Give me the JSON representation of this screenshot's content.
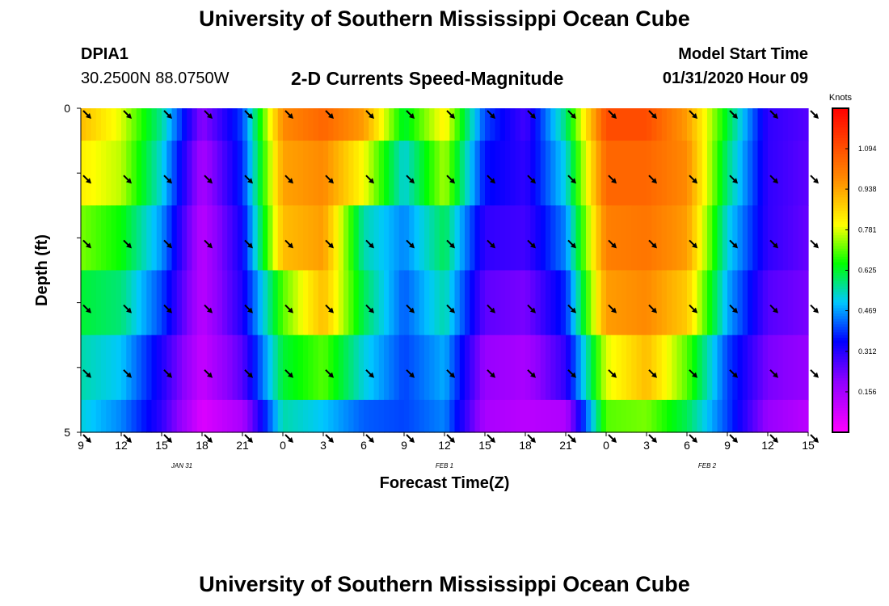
{
  "header": {
    "title": "University of Southern Mississippi Ocean Cube",
    "station_id": "DPIA1",
    "station_coords": "30.2500N 88.0750W",
    "plot_title": "2-D Currents Speed-Magnitude",
    "model_start_label": "Model Start Time",
    "model_start_value": "01/31/2020 Hour 09"
  },
  "footer": {
    "title": "University of Southern Mississippi Ocean Cube"
  },
  "chart_data": {
    "type": "heatmap",
    "title": "2-D Currents Speed-Magnitude",
    "xlabel": "Forecast Time(Z)",
    "ylabel": "Depth (ft)",
    "x_tick_labels": [
      "9",
      "12",
      "15",
      "18",
      "21",
      "0",
      "3",
      "6",
      "9",
      "12",
      "15",
      "18",
      "21",
      "0",
      "3",
      "6",
      "9",
      "12",
      "15"
    ],
    "date_labels": [
      {
        "text": "JAN 31",
        "tick_index": 2.5
      },
      {
        "text": "FEB 1",
        "tick_index": 9
      },
      {
        "text": "FEB 2",
        "tick_index": 15.5
      }
    ],
    "y_tick_labels": [
      {
        "text": "0",
        "value": 0
      },
      {
        "text": "5",
        "value": 5
      }
    ],
    "ylim": [
      0,
      5
    ],
    "hours": [
      0,
      3,
      6,
      9,
      12,
      15,
      18,
      21,
      24,
      27,
      30,
      33,
      36,
      39,
      42,
      45,
      48,
      51,
      54
    ],
    "depth_layers": [
      0.25,
      1.25,
      2.25,
      3.25,
      4.25,
      5.0
    ],
    "speed_knots": [
      [
        0.9,
        0.78,
        0.56,
        0.2,
        0.4,
        0.98,
        1.05,
        0.95,
        0.62,
        0.82,
        0.4,
        0.28,
        0.58,
        1.1,
        1.1,
        0.95,
        0.62,
        0.3,
        0.26
      ],
      [
        0.82,
        0.76,
        0.52,
        0.15,
        0.38,
        0.94,
        0.98,
        0.8,
        0.52,
        0.75,
        0.36,
        0.3,
        0.52,
        1.05,
        1.05,
        0.98,
        0.58,
        0.3,
        0.25
      ],
      [
        0.72,
        0.65,
        0.46,
        0.12,
        0.34,
        0.9,
        0.95,
        0.55,
        0.45,
        0.6,
        0.3,
        0.28,
        0.45,
        1.0,
        1.02,
        0.95,
        0.52,
        0.3,
        0.24
      ],
      [
        0.62,
        0.58,
        0.4,
        0.12,
        0.32,
        0.7,
        0.9,
        0.6,
        0.42,
        0.55,
        0.25,
        0.22,
        0.38,
        0.95,
        0.98,
        0.88,
        0.48,
        0.26,
        0.22
      ],
      [
        0.55,
        0.5,
        0.32,
        0.1,
        0.26,
        0.62,
        0.7,
        0.52,
        0.4,
        0.48,
        0.18,
        0.15,
        0.3,
        0.78,
        0.9,
        0.7,
        0.4,
        0.22,
        0.18
      ],
      [
        0.52,
        0.45,
        0.3,
        0.06,
        0.15,
        0.55,
        0.5,
        0.42,
        0.4,
        0.45,
        0.15,
        0.12,
        0.14,
        0.7,
        0.72,
        0.6,
        0.4,
        0.18,
        0.12
      ]
    ],
    "arrow_depths": [
      0,
      1,
      2,
      3,
      4,
      5
    ],
    "colorbar": {
      "unit_label": "Knots",
      "min": 0,
      "max": 1.25,
      "tick_labels": [
        "1.094",
        "0.938",
        "0.781",
        "0.625",
        "0.469",
        "0.312",
        "0.156"
      ],
      "tick_values": [
        1.094,
        0.938,
        0.781,
        0.625,
        0.469,
        0.312,
        0.156
      ]
    }
  }
}
